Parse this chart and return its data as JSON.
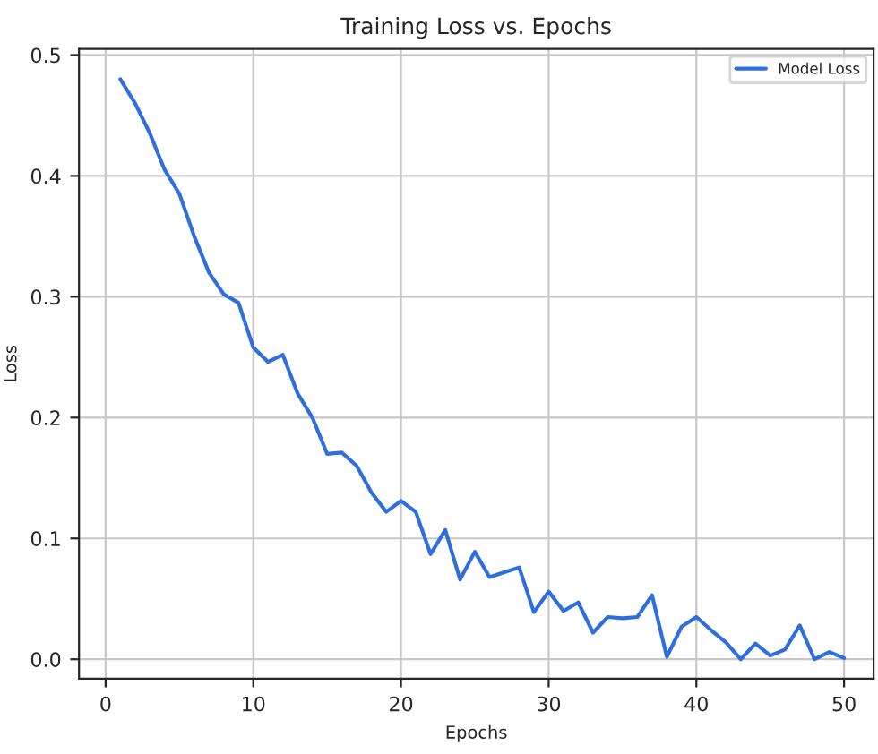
{
  "chart_data": {
    "type": "line",
    "title": "Training Loss vs. Epochs",
    "xlabel": "Epochs",
    "ylabel": "Loss",
    "x": [
      1,
      2,
      3,
      4,
      5,
      6,
      7,
      8,
      9,
      10,
      11,
      12,
      13,
      14,
      15,
      16,
      17,
      18,
      19,
      20,
      21,
      22,
      23,
      24,
      25,
      26,
      27,
      28,
      29,
      30,
      31,
      32,
      33,
      34,
      35,
      36,
      37,
      38,
      39,
      40,
      41,
      42,
      43,
      44,
      45,
      46,
      47,
      48,
      49,
      50
    ],
    "series": [
      {
        "name": "Model Loss",
        "color": "#2f6fdc",
        "values": [
          0.48,
          0.46,
          0.435,
          0.405,
          0.385,
          0.35,
          0.32,
          0.302,
          0.295,
          0.258,
          0.246,
          0.252,
          0.22,
          0.2,
          0.17,
          0.171,
          0.16,
          0.138,
          0.122,
          0.131,
          0.122,
          0.087,
          0.107,
          0.066,
          0.089,
          0.068,
          0.072,
          0.076,
          0.039,
          0.056,
          0.04,
          0.047,
          0.022,
          0.035,
          0.034,
          0.035,
          0.053,
          0.002,
          0.027,
          0.035,
          0.024,
          0.014,
          0.0,
          0.013,
          0.003,
          0.008,
          0.028,
          0.0,
          0.006,
          0.001
        ]
      }
    ],
    "xlim": [
      -1.8,
      52
    ],
    "ylim": [
      -0.016,
      0.505
    ],
    "xticks": [
      0,
      10,
      20,
      30,
      40,
      50
    ],
    "yticks": [
      {
        "value": 0,
        "label": "0.0"
      },
      0.1,
      0.2,
      0.3,
      0.4,
      0.5
    ],
    "grid": true,
    "legend": "top right",
    "marker": "none",
    "line_style": "solid"
  }
}
